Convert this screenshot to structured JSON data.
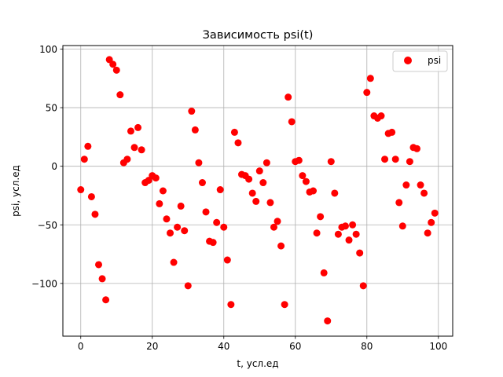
{
  "chart_data": {
    "type": "scatter",
    "title": "Зависимость psi(t)",
    "xlabel": "t, усл.ед",
    "ylabel": "psi, усл.ед",
    "xlim": [
      -5,
      104
    ],
    "ylim": [
      -145,
      103
    ],
    "xticks": [
      0,
      20,
      40,
      60,
      80,
      100
    ],
    "yticks": [
      100,
      50,
      0,
      -50,
      -100
    ],
    "grid": true,
    "legend": {
      "position": "top-right"
    },
    "colors": {
      "marker": "#ff0000",
      "grid": "#b0b0b0"
    },
    "series": [
      {
        "name": "psi",
        "marker": "circle",
        "x": [
          0,
          1,
          2,
          3,
          4,
          5,
          6,
          7,
          8,
          9,
          10,
          11,
          12,
          13,
          14,
          15,
          16,
          17,
          18,
          19,
          20,
          21,
          22,
          23,
          24,
          25,
          26,
          27,
          28,
          29,
          30,
          31,
          32,
          33,
          34,
          35,
          36,
          37,
          38,
          39,
          40,
          41,
          42,
          43,
          44,
          45,
          46,
          47,
          48,
          49,
          50,
          51,
          52,
          53,
          54,
          55,
          56,
          57,
          58,
          59,
          60,
          61,
          62,
          63,
          64,
          65,
          66,
          67,
          68,
          69,
          70,
          71,
          72,
          73,
          74,
          75,
          76,
          77,
          78,
          79,
          80,
          81,
          82,
          83,
          84,
          85,
          86,
          87,
          88,
          89,
          90,
          91,
          92,
          93,
          94,
          95,
          96,
          97,
          98,
          99
        ],
        "y": [
          -20,
          6,
          17,
          -26,
          -41,
          -84,
          -96,
          -114,
          91,
          87,
          82,
          61,
          3,
          6,
          30,
          16,
          33,
          14,
          -14,
          -12,
          -8,
          -10,
          -32,
          -21,
          -45,
          -57,
          -82,
          -52,
          -34,
          -55,
          -102,
          47,
          31,
          3,
          -14,
          -39,
          -64,
          -65,
          -48,
          -20,
          -52,
          -80,
          -118,
          29,
          20,
          -7,
          -8,
          -11,
          -23,
          -30,
          -4,
          -14,
          3,
          -31,
          -52,
          -47,
          -68,
          -118,
          59,
          38,
          4,
          5,
          -8,
          -13,
          -22,
          -21,
          -57,
          -43,
          -91,
          -132,
          4,
          -23,
          -58,
          -52,
          -51,
          -63,
          -50,
          -58,
          -74,
          -102,
          63,
          75,
          43,
          41,
          43,
          6,
          28,
          29,
          6,
          -31,
          -51,
          -16,
          4,
          16,
          15,
          -16,
          -23,
          -57,
          -48,
          -40
        ]
      }
    ]
  }
}
